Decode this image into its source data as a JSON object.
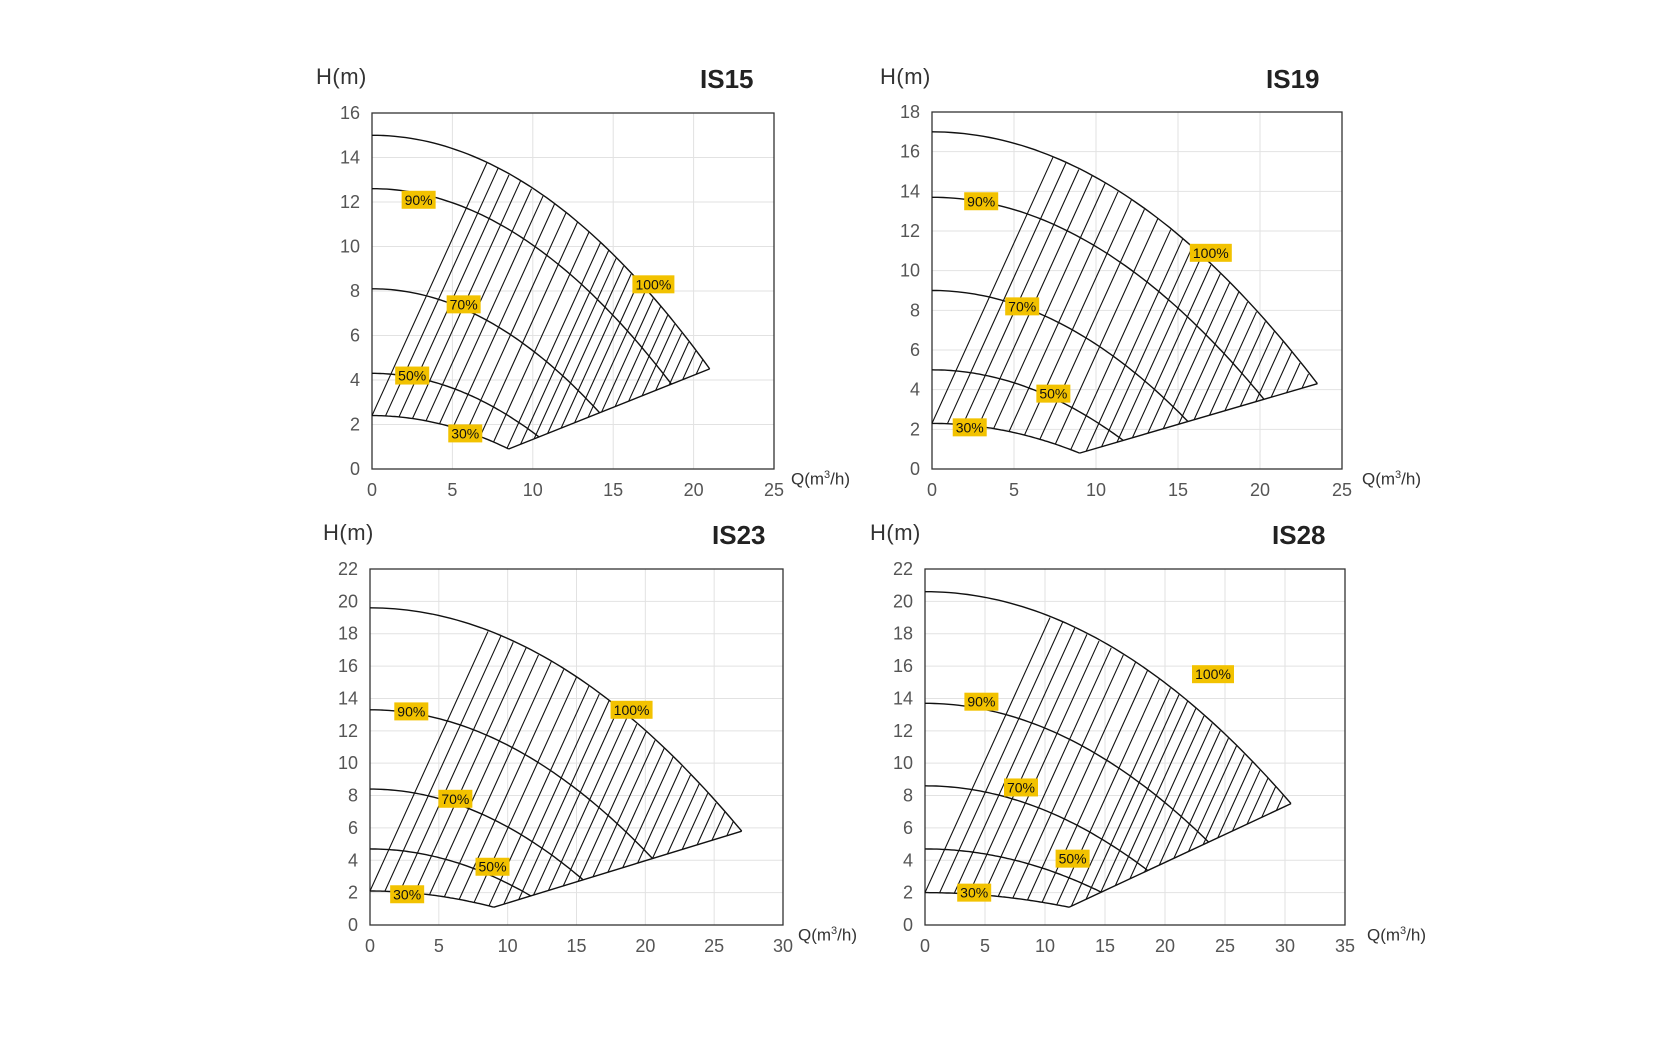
{
  "chart_data": [
    {
      "type": "line",
      "title": "IS15",
      "ylabel": "H(m)",
      "xlabel": "Q(m",
      "xlabel_sup": "3",
      "xlabel_end": "/h)",
      "xlim": [
        0,
        25
      ],
      "ylim": [
        0,
        16
      ],
      "x_ticks": [
        0,
        5,
        10,
        15,
        20,
        25
      ],
      "y_ticks": [
        0,
        2,
        4,
        6,
        8,
        10,
        12,
        14,
        16
      ],
      "grid": true,
      "tip": [
        21,
        4.5
      ],
      "bottom_start": [
        8.5,
        0.9
      ],
      "curves": [
        {
          "name": "100%",
          "shutoff": 15,
          "label_at": [
            17.5,
            8.3
          ]
        },
        {
          "name": "90%",
          "shutoff": 12.6,
          "label_at": [
            2.9,
            12.1
          ]
        },
        {
          "name": "70%",
          "shutoff": 8.1,
          "label_at": [
            5.7,
            7.4
          ]
        },
        {
          "name": "50%",
          "shutoff": 4.3,
          "label_at": [
            2.5,
            4.2
          ]
        },
        {
          "name": "30%",
          "shutoff": 2.4,
          "label_at": [
            5.8,
            1.6
          ]
        }
      ]
    },
    {
      "type": "line",
      "title": "IS19",
      "ylabel": "H(m)",
      "xlabel": "Q(m",
      "xlabel_sup": "3",
      "xlabel_end": "/h)",
      "xlim": [
        0,
        25
      ],
      "ylim": [
        0,
        18
      ],
      "x_ticks": [
        0,
        5,
        10,
        15,
        20,
        25
      ],
      "y_ticks": [
        0,
        2,
        4,
        6,
        8,
        10,
        12,
        14,
        16,
        18
      ],
      "grid": true,
      "tip": [
        23.5,
        4.3
      ],
      "bottom_start": [
        9,
        0.8
      ],
      "curves": [
        {
          "name": "100%",
          "shutoff": 17,
          "label_at": [
            17,
            10.9
          ]
        },
        {
          "name": "90%",
          "shutoff": 13.7,
          "label_at": [
            3,
            13.5
          ]
        },
        {
          "name": "70%",
          "shutoff": 9,
          "label_at": [
            5.5,
            8.2
          ]
        },
        {
          "name": "50%",
          "shutoff": 5,
          "label_at": [
            7.4,
            3.8
          ]
        },
        {
          "name": "30%",
          "shutoff": 2.3,
          "label_at": [
            2.3,
            2.1
          ]
        }
      ]
    },
    {
      "type": "line",
      "title": "IS23",
      "ylabel": "H(m)",
      "xlabel": "Q(m",
      "xlabel_sup": "3",
      "xlabel_end": "/h)",
      "xlim": [
        0,
        30
      ],
      "ylim": [
        0,
        22
      ],
      "x_ticks": [
        0,
        5,
        10,
        15,
        20,
        25,
        30
      ],
      "y_ticks": [
        0,
        2,
        4,
        6,
        8,
        10,
        12,
        14,
        16,
        18,
        20,
        22
      ],
      "grid": true,
      "tip": [
        27,
        5.8
      ],
      "bottom_start": [
        9,
        1.1
      ],
      "curves": [
        {
          "name": "100%",
          "shutoff": 19.6,
          "label_at": [
            19,
            13.3
          ]
        },
        {
          "name": "90%",
          "shutoff": 13.3,
          "label_at": [
            3,
            13.2
          ]
        },
        {
          "name": "70%",
          "shutoff": 8.4,
          "label_at": [
            6.2,
            7.8
          ]
        },
        {
          "name": "50%",
          "shutoff": 4.7,
          "label_at": [
            8.9,
            3.6
          ]
        },
        {
          "name": "30%",
          "shutoff": 2.1,
          "label_at": [
            2.7,
            1.9
          ]
        }
      ]
    },
    {
      "type": "line",
      "title": "IS28",
      "ylabel": "H(m)",
      "xlabel": "Q(m",
      "xlabel_sup": "3",
      "xlabel_end": "/h)",
      "xlim": [
        0,
        35
      ],
      "ylim": [
        0,
        22
      ],
      "x_ticks": [
        0,
        5,
        10,
        15,
        20,
        25,
        30,
        35
      ],
      "y_ticks": [
        0,
        2,
        4,
        6,
        8,
        10,
        12,
        14,
        16,
        18,
        20,
        22
      ],
      "grid": true,
      "tip": [
        30.5,
        7.5
      ],
      "bottom_start": [
        12,
        1.1
      ],
      "curves": [
        {
          "name": "100%",
          "shutoff": 20.6,
          "label_at": [
            24,
            15.5
          ]
        },
        {
          "name": "90%",
          "shutoff": 13.7,
          "label_at": [
            4.7,
            13.8
          ]
        },
        {
          "name": "70%",
          "shutoff": 8.6,
          "label_at": [
            8,
            8.5
          ]
        },
        {
          "name": "50%",
          "shutoff": 4.7,
          "label_at": [
            12.3,
            4.1
          ]
        },
        {
          "name": "30%",
          "shutoff": 2,
          "label_at": [
            4.1,
            2
          ]
        }
      ]
    }
  ],
  "colors": {
    "label_bg": "#f2c200",
    "line": "#111111",
    "grid": "#e2e2e2",
    "frame": "#333333"
  }
}
